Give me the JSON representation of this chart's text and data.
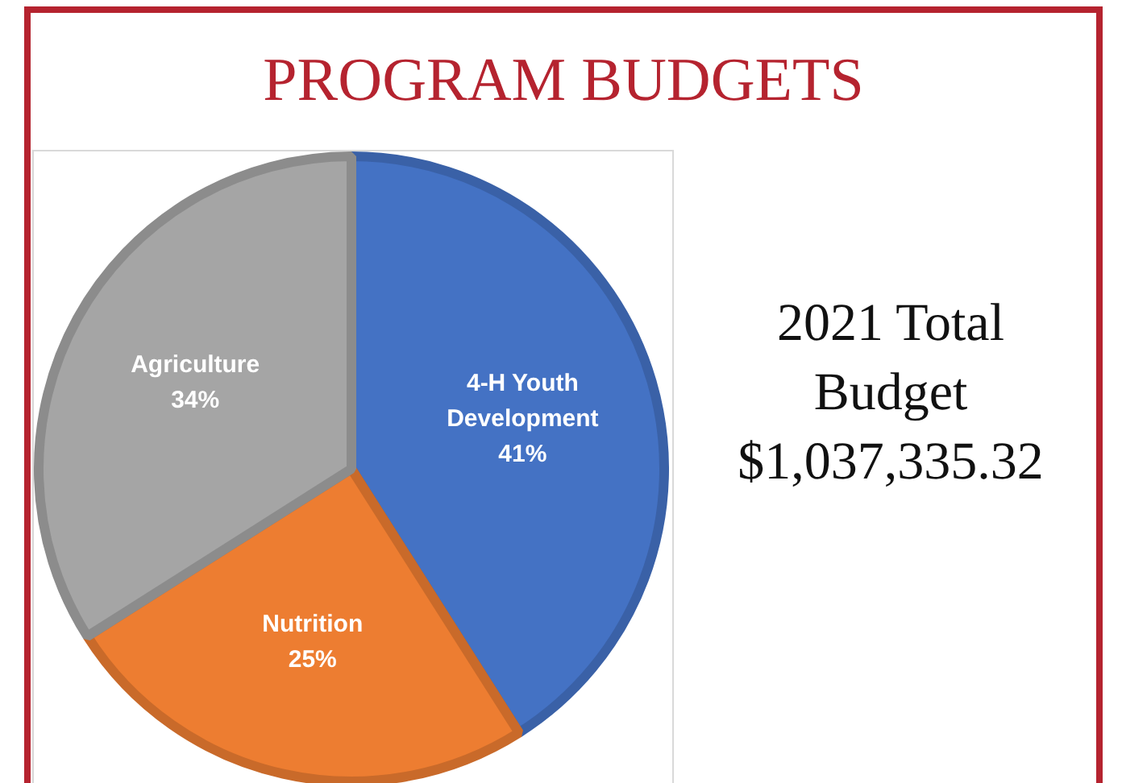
{
  "chart_data": {
    "type": "pie",
    "title": "PROGRAM BUDGETS",
    "categories": [
      "4-H Youth Development",
      "Nutrition",
      "Agriculture"
    ],
    "values": [
      41,
      25,
      34
    ],
    "colors": [
      "#4472c4",
      "#ed7d31",
      "#a5a5a5"
    ],
    "value_labels": [
      "41%",
      "25%",
      "34%"
    ],
    "legend": false,
    "annotations": [
      "2021 Total Budget $1,037,335.32"
    ]
  }
}
